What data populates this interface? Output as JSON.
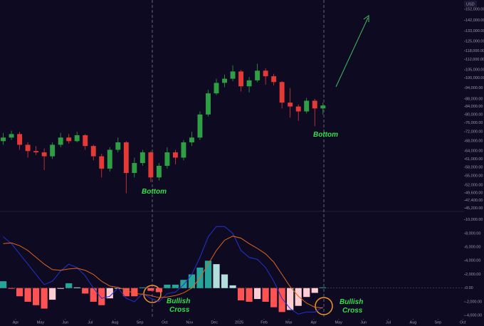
{
  "chart_data": [
    {
      "type": "candlestick",
      "unit_label": "USD",
      "log": true,
      "up_color": "#2ea043",
      "down_color": "#e53935",
      "xlim": [
        -0.63,
        18.05
      ],
      "ylim": [
        44300,
        160800
      ],
      "yticks": [
        {
          "value": 152000,
          "label": "152,000.00"
        },
        {
          "value": 142000,
          "label": "142,000.00"
        },
        {
          "value": 133000,
          "label": "133,000.00"
        },
        {
          "value": 125000,
          "label": "125,000.00"
        },
        {
          "value": 118000,
          "label": "118,000.00"
        },
        {
          "value": 112000,
          "label": "112,000.00"
        },
        {
          "value": 105000,
          "label": "105,000.00"
        },
        {
          "value": 100000,
          "label": "100,000.00"
        },
        {
          "value": 94000,
          "label": "94,000.00"
        },
        {
          "value": 88000,
          "label": "88,000.00"
        },
        {
          "value": 84000,
          "label": "84,000.00"
        },
        {
          "value": 80000,
          "label": "80,000.00"
        },
        {
          "value": 76000,
          "label": "76,000.00"
        },
        {
          "value": 72000,
          "label": "72,000.00"
        },
        {
          "value": 68000,
          "label": "68,000.00"
        },
        {
          "value": 64000,
          "label": "64,000.00"
        },
        {
          "value": 61000,
          "label": "61,000.00"
        },
        {
          "value": 58000,
          "label": "58,000.00"
        },
        {
          "value": 55000,
          "label": "55,000.00"
        },
        {
          "value": 52000,
          "label": "52,000.00"
        },
        {
          "value": 49600,
          "label": "49,600.00"
        },
        {
          "value": 47400,
          "label": "47,400.00"
        },
        {
          "value": 45200,
          "label": "45,200.00"
        }
      ],
      "x": [
        -0.5,
        -0.17,
        0.16,
        0.49,
        0.82,
        1.15,
        1.48,
        1.81,
        2.14,
        2.47,
        2.8,
        3.13,
        3.46,
        3.79,
        4.12,
        4.45,
        4.78,
        5.11,
        5.44,
        5.77,
        6.1,
        6.43,
        6.76,
        7.09,
        7.42,
        7.75,
        8.08,
        8.41,
        8.74,
        9.07,
        9.4,
        9.73,
        10.06,
        10.39,
        10.72,
        11.05,
        11.38,
        11.71,
        12.04,
        12.37
      ],
      "open": [
        68000,
        69500,
        71000,
        66500,
        64000,
        63500,
        62000,
        66500,
        69500,
        68000,
        70500,
        66000,
        62000,
        57500,
        64500,
        67500,
        56000,
        59500,
        63500,
        54500,
        58500,
        63500,
        61500,
        67500,
        69500,
        80000,
        91000,
        97000,
        99500,
        104000,
        95000,
        98500,
        104500,
        101000,
        97500,
        86000,
        84000,
        81500,
        87000,
        83000
      ],
      "high": [
        71500,
        72500,
        72000,
        67500,
        66000,
        65000,
        67500,
        71500,
        71000,
        72000,
        71000,
        66500,
        63000,
        65500,
        69500,
        68000,
        61500,
        64500,
        64000,
        59500,
        65500,
        64500,
        68500,
        72000,
        81500,
        93000,
        99500,
        102000,
        108000,
        105000,
        100500,
        109000,
        106000,
        102500,
        98000,
        94000,
        85000,
        88500,
        88000,
        86000
      ],
      "low": [
        66500,
        68500,
        64500,
        61500,
        62500,
        57000,
        61000,
        65500,
        67000,
        67500,
        64500,
        60500,
        54500,
        56500,
        63500,
        49500,
        54500,
        58500,
        53000,
        53500,
        57500,
        59000,
        60500,
        66000,
        68500,
        79000,
        90000,
        94500,
        98000,
        92000,
        91500,
        97500,
        96000,
        95500,
        83000,
        78500,
        77000,
        80500,
        74500,
        80000
      ],
      "close": [
        69500,
        71000,
        66500,
        64000,
        63500,
        62000,
        66500,
        69500,
        68000,
        70500,
        66000,
        62000,
        57500,
        64500,
        67500,
        56000,
        59500,
        63500,
        54500,
        58500,
        63500,
        61500,
        67500,
        69500,
        80000,
        91000,
        97000,
        99500,
        104000,
        95000,
        98500,
        104500,
        101000,
        97500,
        86000,
        84000,
        81500,
        87000,
        83000,
        84500
      ],
      "annotations": [
        "Bottom",
        "Bottom"
      ]
    },
    {
      "type": "macd",
      "xlim": [
        -0.63,
        18.05
      ],
      "ylim": [
        -4400,
        10900
      ],
      "xticks": [
        {
          "value": 0,
          "label": "Apr"
        },
        {
          "value": 1,
          "label": "May"
        },
        {
          "value": 2,
          "label": "Jun"
        },
        {
          "value": 3,
          "label": "Jul"
        },
        {
          "value": 4,
          "label": "Aug"
        },
        {
          "value": 5,
          "label": "Sep"
        },
        {
          "value": 6,
          "label": "Oct"
        },
        {
          "value": 7,
          "label": "Nov"
        },
        {
          "value": 8,
          "label": "Dec"
        },
        {
          "value": 9,
          "label": "2025"
        },
        {
          "value": 10,
          "label": "Feb"
        },
        {
          "value": 11,
          "label": "Mar"
        },
        {
          "value": 12,
          "label": "Apr"
        },
        {
          "value": 13,
          "label": "May"
        },
        {
          "value": 14,
          "label": "Jun"
        },
        {
          "value": 15,
          "label": "Jul"
        },
        {
          "value": 16,
          "label": "Aug"
        },
        {
          "value": 17,
          "label": "Sep"
        },
        {
          "value": 18,
          "label": "Oct"
        }
      ],
      "yticks": [
        {
          "value": 10000,
          "label": "10,000.00"
        },
        {
          "value": 8000,
          "label": "8,000.00"
        },
        {
          "value": 6000,
          "label": "6,000.00"
        },
        {
          "value": 4000,
          "label": "4,000.00"
        },
        {
          "value": 2000,
          "label": "2,000.00"
        },
        {
          "value": 0,
          "label": "0.00"
        },
        {
          "value": -2000,
          "label": "-2,000.00"
        },
        {
          "value": -4000,
          "label": "-4,000.00"
        }
      ],
      "x": [
        -0.5,
        -0.17,
        0.16,
        0.49,
        0.82,
        1.15,
        1.48,
        1.81,
        2.14,
        2.47,
        2.8,
        3.13,
        3.46,
        3.79,
        4.12,
        4.45,
        4.78,
        5.11,
        5.44,
        5.77,
        6.1,
        6.43,
        6.76,
        7.09,
        7.42,
        7.75,
        8.08,
        8.41,
        8.74,
        9.07,
        9.4,
        9.73,
        10.06,
        10.39,
        10.72,
        11.05,
        11.38,
        11.71,
        12.04,
        12.37
      ],
      "series": [
        {
          "color": "#2233cc",
          "values": [
            7500,
            6500,
            5000,
            3500,
            2000,
            500,
            1000,
            2500,
            3500,
            3000,
            1800,
            0,
            -1500,
            -1200,
            0,
            -1500,
            -2000,
            -800,
            -1500,
            -2000,
            -800,
            -600,
            500,
            2000,
            4500,
            7500,
            9000,
            9000,
            8000,
            5500,
            4500,
            4200,
            3000,
            1000,
            -1500,
            -3000,
            -3800,
            -3500,
            -3500,
            -2800
          ]
        },
        {
          "color": "#e0651a",
          "values": [
            6500,
            6600,
            6200,
            5500,
            4500,
            3500,
            2700,
            2600,
            2800,
            2900,
            2600,
            2000,
            1000,
            300,
            100,
            -300,
            -800,
            -900,
            -1100,
            -1400,
            -1300,
            -1100,
            -700,
            0,
            1500,
            3500,
            5500,
            7000,
            7600,
            7300,
            6500,
            5800,
            5000,
            3800,
            2000,
            200,
            -1200,
            -2200,
            -2800,
            -2900
          ]
        }
      ],
      "histogram": {
        "colors": [
          "#26a69a",
          "#b2dfdb",
          "#ff5252",
          "#ffcdd2"
        ],
        "values": [
          1000,
          -100,
          -1200,
          -2000,
          -2500,
          -3000,
          -1700,
          -100,
          700,
          100,
          -800,
          -2000,
          -2500,
          -1500,
          -100,
          -1200,
          -1200,
          100,
          -400,
          -600,
          500,
          500,
          1200,
          2000,
          3000,
          4000,
          3500,
          2000,
          400,
          -1800,
          -2000,
          -1600,
          -2000,
          -2800,
          -3500,
          -3200,
          -2600,
          -1300,
          -700,
          100
        ]
      },
      "annotations": [
        {
          "lines": [
            "Bullish",
            "Cross"
          ]
        },
        {
          "lines": [
            "Bullish",
            "Cross"
          ]
        }
      ]
    }
  ]
}
